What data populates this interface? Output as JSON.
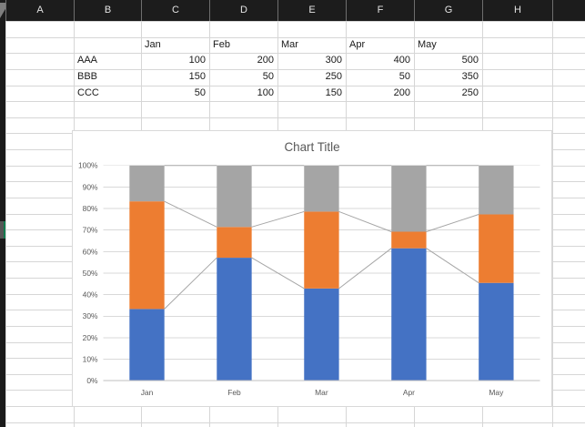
{
  "header": {
    "column_letters": [
      "A",
      "B",
      "C",
      "D",
      "E",
      "F",
      "G",
      "H",
      ""
    ]
  },
  "table": {
    "month_headers": [
      "Jan",
      "Feb",
      "Mar",
      "Apr",
      "May"
    ],
    "rows": [
      {
        "label": "AAA",
        "values": [
          100,
          200,
          300,
          400,
          500
        ]
      },
      {
        "label": "BBB",
        "values": [
          150,
          50,
          250,
          50,
          350
        ]
      },
      {
        "label": "CCC",
        "values": [
          50,
          100,
          150,
          200,
          250
        ]
      }
    ]
  },
  "chart_data": {
    "type": "bar",
    "subtype": "100% stacked column with series lines",
    "title": "Chart Title",
    "categories": [
      "Jan",
      "Feb",
      "Mar",
      "Apr",
      "May"
    ],
    "series": [
      {
        "name": "AAA",
        "color": "#4472C4",
        "values": [
          100,
          200,
          300,
          400,
          500
        ]
      },
      {
        "name": "BBB",
        "color": "#ED7D31",
        "values": [
          150,
          50,
          250,
          50,
          350
        ]
      },
      {
        "name": "CCC",
        "color": "#A5A5A5",
        "values": [
          50,
          100,
          150,
          200,
          250
        ]
      }
    ],
    "y_axis": {
      "ticks": [
        "0%",
        "10%",
        "20%",
        "30%",
        "40%",
        "50%",
        "60%",
        "70%",
        "80%",
        "90%",
        "100%"
      ],
      "min": 0,
      "max": 1
    },
    "gridlines": true,
    "legend": "none",
    "series_line_color": "#A6A6A6"
  },
  "colors": {
    "header_bg": "#1C1C1C",
    "grid_line": "#D6D6D6",
    "active_row_green": "#0F7B4D",
    "chart_border": "#D9D9D9",
    "chart_gridline": "#D9D9D9",
    "axis_line": "#BFBFBF",
    "axis_text": "#595959"
  }
}
